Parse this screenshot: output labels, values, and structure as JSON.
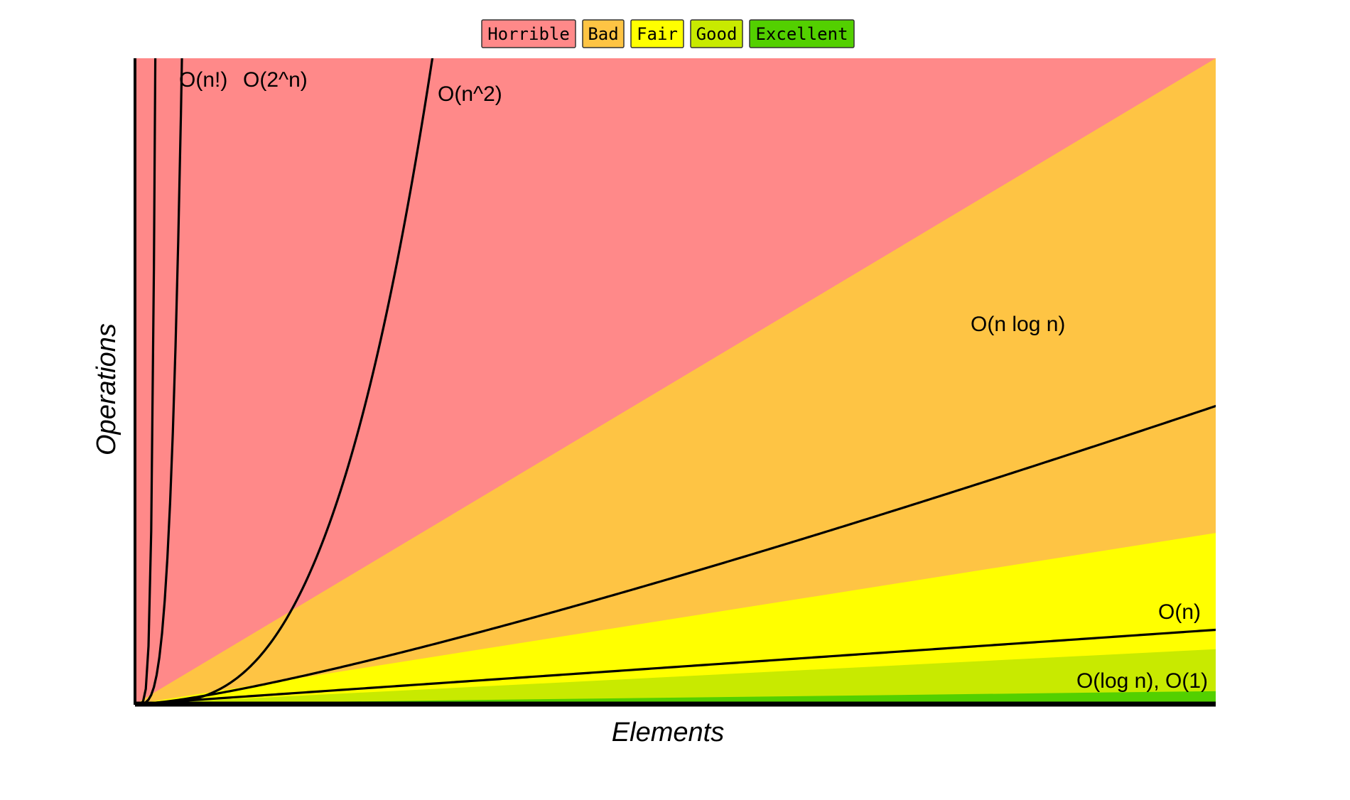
{
  "chart_data": {
    "type": "line",
    "title": "",
    "xlabel": "Elements",
    "ylabel": "Operations",
    "xlim": [
      0,
      100
    ],
    "ylim": [
      0,
      100
    ],
    "grid": false,
    "legend_position": "top-center",
    "legend": [
      {
        "label": "Horrible",
        "color": "#ff8989"
      },
      {
        "label": "Bad",
        "color": "#fec444"
      },
      {
        "label": "Fair",
        "color": "#ffff00"
      },
      {
        "label": "Good",
        "color": "#c8ea00"
      },
      {
        "label": "Excellent",
        "color": "#53d000"
      }
    ],
    "regions": [
      {
        "name": "Horrible",
        "color": "#ff8989",
        "upper_slope": 1.0
      },
      {
        "name": "Bad",
        "color": "#fec444",
        "upper_slope": 1.0
      },
      {
        "name": "Fair",
        "color": "#ffff00",
        "upper_slope": 0.265
      },
      {
        "name": "Good",
        "color": "#c8ea00",
        "upper_slope": 0.085
      },
      {
        "name": "Excellent",
        "color": "#53d000",
        "upper_slope": 0.02
      }
    ],
    "series": [
      {
        "name": "O(n!)",
        "label": "O(n!)",
        "function": "factorial"
      },
      {
        "name": "O(2^n)",
        "label": "O(2^n)",
        "function": "exponential"
      },
      {
        "name": "O(n^2)",
        "label": "O(n^2)",
        "function": "quadratic"
      },
      {
        "name": "O(n log n)",
        "label": "O(n log n)",
        "function": "nlogn"
      },
      {
        "name": "O(n)",
        "label": "O(n)",
        "function": "linear"
      },
      {
        "name": "O(log n), O(1)",
        "label": "O(log n), O(1)",
        "function": "constant"
      }
    ]
  }
}
